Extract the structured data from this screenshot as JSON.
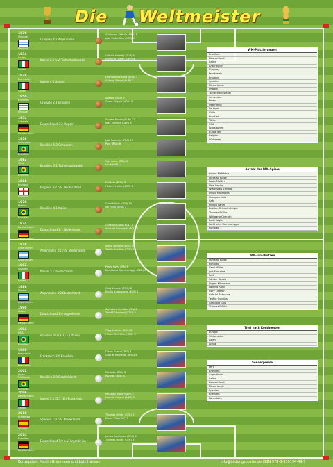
{
  "title": {
    "word1": "Die",
    "word2": "Weltmeister"
  },
  "footer": {
    "left": "Konzeption: Martin Grimmann und Lutz Hansen",
    "right": "info@bildungsposter.de     ISBN 978-3-939194-49-1"
  },
  "colors": {
    "grass_dark": "#6fa637",
    "grass_light": "#86b945",
    "title": "#fff34a",
    "line": "#f2f6ea"
  },
  "tournaments": [
    {
      "year": "1930",
      "host": "Uruguay",
      "winner": "Uruguay",
      "flag": "uy",
      "final": "Uruguay  4:2  Argentinien",
      "scorers": [
        "Guillermo Stábile (ARG) 8",
        "José Pedro Cea (URU) 5"
      ]
    },
    {
      "year": "1934",
      "host": "Italien",
      "winner": "Italien",
      "flag": "it",
      "final": "Italien  2:1 n.V.  Tschechoslowakei",
      "scorers": [
        "Oldřich Nejedlý (TCH) 5",
        "Edmund Conen (GER) 4"
      ]
    },
    {
      "year": "1938",
      "host": "Frankreich",
      "winner": "Italien",
      "flag": "it",
      "final": "Italien  4:2  Ungarn",
      "scorers": [
        "Leônidas da Silva (BRA) 7",
        "György Sárosi (HUN) 5"
      ]
    },
    {
      "year": "1950",
      "host": "Brasilien",
      "winner": "Uruguay",
      "flag": "uy",
      "final": "Uruguay  2:1  Brasilien",
      "scorers": [
        "Ademir (BRA) 8",
        "Óscar Míguez (URU) 5"
      ]
    },
    {
      "year": "1954",
      "host": "Schweiz",
      "winner": "Deutschland",
      "flag": "de",
      "final": "Deutschland  3:2  Ungarn",
      "scorers": [
        "Sándor Kocsis (HUN) 11",
        "Max Morlock (GER) 6"
      ]
    },
    {
      "year": "1958",
      "host": "Schweden",
      "winner": "Brasilien",
      "flag": "br",
      "final": "Brasilien  5:2  Schweden",
      "scorers": [
        "Just Fontaine (FRA) 13",
        "Pelé (BRA) 6"
      ]
    },
    {
      "year": "1962",
      "host": "Chile",
      "winner": "Brasilien",
      "flag": "br",
      "final": "Brasilien  3:1  Tschechoslowakei",
      "scorers": [
        "Garrincha (BRA) 4",
        "Vavá (BRA) 4"
      ]
    },
    {
      "year": "1966",
      "host": "England",
      "winner": "England",
      "flag": "en",
      "final": "England  4:2 n.V.  Deutschland",
      "scorers": [
        "Eusébio (POR) 9",
        "Helmut Haller (GER) 6"
      ]
    },
    {
      "year": "1970",
      "host": "Mexiko",
      "winner": "Brasilien",
      "flag": "br",
      "final": "Brasilien  4:1  Italien",
      "scorers": [
        "Gerd Müller (GER) 10",
        "Jairzinho (BRA) 7"
      ]
    },
    {
      "year": "1974",
      "host": "Deutschland",
      "winner": "Deutschland",
      "flag": "de",
      "final": "Deutschland  2:1  Niederlande",
      "scorers": [
        "Grzegorz Lato (POL) 7",
        "Andrzej Szarmach (POL) 5"
      ]
    },
    {
      "year": "1978",
      "host": "Argentinien",
      "winner": "Argentinien",
      "flag": "ar",
      "final": "Argentinien  3:1 n.V.  Niederlande",
      "scorers": [
        "Mario Kempes (ARG) 6",
        "Teófilo Cubillas (PER) 5"
      ]
    },
    {
      "year": "1982",
      "host": "Spanien",
      "winner": "Italien",
      "flag": "it",
      "final": "Italien  3:1  Deutschland",
      "scorers": [
        "Paolo Rossi (ITA) 6",
        "Karl-Heinz Rummenigge (GER) 5"
      ]
    },
    {
      "year": "1986",
      "host": "Mexiko",
      "winner": "Argentinien",
      "flag": "ar",
      "final": "Argentinien  3:2  Deutschland",
      "scorers": [
        "Gary Lineker (ENG) 6",
        "Emilio Butragueño (ESP) 5"
      ]
    },
    {
      "year": "1990",
      "host": "Italien",
      "winner": "Deutschland",
      "flag": "de",
      "final": "Deutschland  1:0  Argentinien",
      "scorers": [
        "Salvatore Schillaci (ITA) 6",
        "Tomáš Skuhravý (TCH) 5"
      ]
    },
    {
      "year": "1994",
      "host": "USA",
      "winner": "Brasilien",
      "flag": "br",
      "final": "Brasilien  0:0 (3:2 i.E.)  Italien",
      "scorers": [
        "Oleg Salenko (RUS) 6",
        "Hristo Stoichkov (BUL) 6"
      ]
    },
    {
      "year": "1998",
      "host": "Frankreich",
      "winner": "Frankreich",
      "flag": "fr",
      "final": "Frankreich  3:0  Brasilien",
      "scorers": [
        "Davor Šuker (CRO) 6",
        "Gabriel Batistuta (ARG) 5"
      ]
    },
    {
      "year": "2002",
      "host": "Japan / Südkorea",
      "winner": "Brasilien",
      "flag": "br",
      "final": "Brasilien  2:0  Deutschland",
      "scorers": [
        "Ronaldo (BRA) 8",
        "Rivaldo (BRA) 5"
      ]
    },
    {
      "year": "2006",
      "host": "Deutschland",
      "winner": "Italien",
      "flag": "it",
      "final": "Italien  1:1 (5:3 i.E.)  Frankreich",
      "scorers": [
        "Miroslav Klose (GER) 5",
        "Hernán Crespo (ARG) 3"
      ]
    },
    {
      "year": "2010",
      "host": "Südafrika",
      "winner": "Spanien",
      "flag": "es",
      "final": "Spanien  1:0 n.V.  Niederlande",
      "scorers": [
        "Thomas Müller (GER) 5",
        "David Villa (ESP) 5"
      ]
    },
    {
      "year": "2014",
      "host": "Brasilien",
      "winner": "Deutschland",
      "flag": "de",
      "final": "Deutschland  1:0 n.V.  Argentinien",
      "scorers": [
        "James Rodríguez (COL) 6",
        "Thomas Müller (GER) 5"
      ]
    }
  ],
  "tables": [
    {
      "title": "WM-Platzierungen",
      "rows": [
        "Brasilien",
        "Deutschland",
        "Italien",
        "Argentinien",
        "Uruguay",
        "Frankreich",
        "England",
        "Spanien",
        "Niederlande",
        "Ungarn",
        "Tschechoslowakei",
        "Schweden",
        "Polen",
        "Österreich",
        "Portugal",
        "Chile",
        "Kroatien",
        "Türkei",
        "USA",
        "Jugoslawien",
        "Bulgarien",
        "Belgien",
        "Südkorea"
      ]
    },
    {
      "title": "Anzahl der WM-Spiele",
      "rows": [
        "Lothar Matthäus",
        "Miroslav Klose",
        "Paolo Maldini",
        "Uwe Seeler",
        "Władysław Żmuda",
        "Diego Maradona",
        "Grzegorz Lato",
        "Cafu",
        "Philipp Lahm",
        "Bastian Schweinsteiger",
        "Thomas Müller",
        "Wolfgang Overath",
        "Berti Vogts",
        "Karl-Heinz Rummenigge",
        "Ronaldo"
      ]
    },
    {
      "title": "WM-Torschützen",
      "rows": [
        "Miroslav Klose",
        "Ronaldo",
        "Gerd Müller",
        "Just Fontaine",
        "Pelé",
        "Sándor Kocsis",
        "Jürgen Klinsmann",
        "Helmut Rahn",
        "Gary Lineker",
        "Gabriel Batistuta",
        "Teófilo Cubillas",
        "Grzegorz Lato",
        "Thomas Müller"
      ]
    },
    {
      "title": "Titel nach Kontinenten",
      "rows": [
        "Europa",
        "Südamerika",
        "Asien",
        "Afrika"
      ]
    },
    {
      "title": "Sonderpreise",
      "rows": [
        "Peru",
        "Brasilien",
        "Argentinien",
        "Italien",
        "Deutschland",
        "Niederlande",
        "Spanien",
        "Brasilien",
        "Kolumbien"
      ]
    }
  ]
}
